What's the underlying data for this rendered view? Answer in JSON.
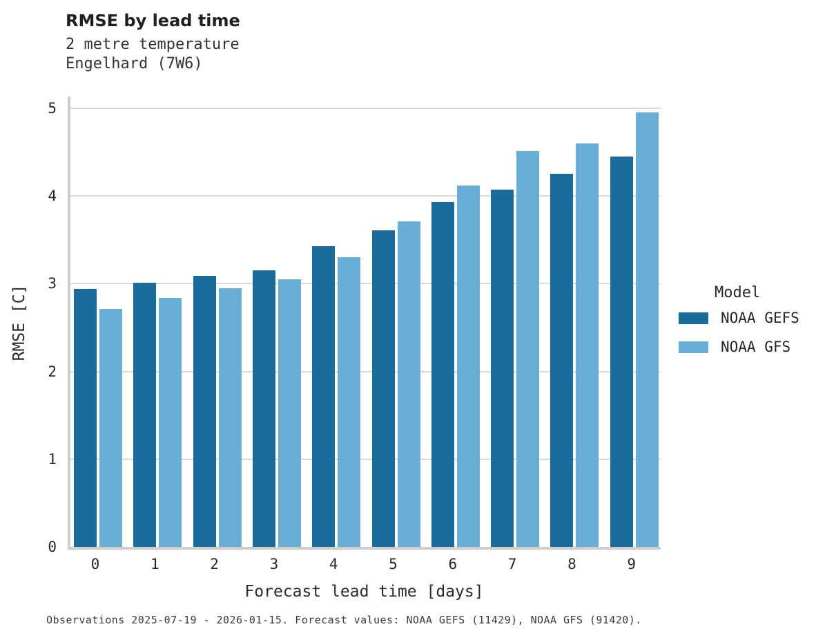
{
  "chart_data": {
    "type": "bar",
    "title": "RMSE by lead time",
    "subtitle": [
      "2 metre temperature",
      "Engelhard (7W6)"
    ],
    "categories": [
      "0",
      "1",
      "2",
      "3",
      "4",
      "5",
      "6",
      "7",
      "8",
      "9"
    ],
    "series": [
      {
        "name": "NOAA GEFS",
        "color": "#1a6c9c",
        "values": [
          2.94,
          3.01,
          3.09,
          3.15,
          3.43,
          3.61,
          3.93,
          4.07,
          4.25,
          4.45
        ]
      },
      {
        "name": "NOAA GFS",
        "color": "#68aed7",
        "values": [
          2.71,
          2.84,
          2.95,
          3.05,
          3.3,
          3.71,
          4.12,
          4.51,
          4.6,
          4.95
        ]
      }
    ],
    "xlabel": "Forecast lead time [days]",
    "ylabel": "RMSE [C]",
    "ylim": [
      0,
      5.13
    ],
    "yticks": [
      0,
      1,
      2,
      3,
      4,
      5
    ],
    "grid": "horizontal",
    "legend_title": "Model",
    "legend_position": "right",
    "caption": "Observations 2025-07-19 - 2026-01-15. Forecast values: NOAA GEFS (11429), NOAA GFS (91420)."
  }
}
